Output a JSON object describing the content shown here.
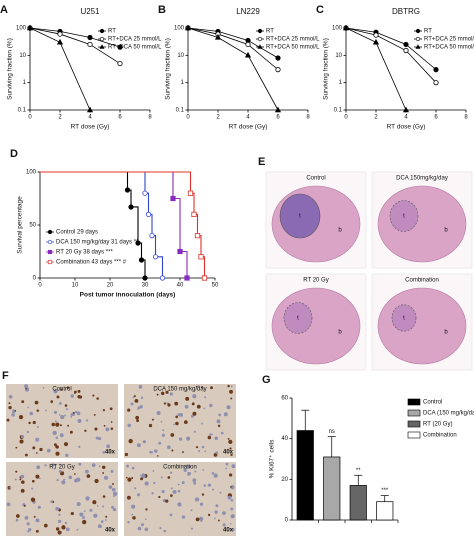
{
  "chart_data": [
    {
      "panel": "A",
      "type": "line",
      "title": "U251",
      "x_label": "RT dose (Gy)",
      "y_label": "Surviving fraction (%)",
      "log_y": true,
      "xlim": [
        0,
        8
      ],
      "xticks": [
        0,
        2,
        4,
        6,
        8
      ],
      "ylim": [
        0.1,
        100
      ],
      "yticks": [
        0.1,
        1,
        10,
        100
      ],
      "series": [
        {
          "name": "RT",
          "color": "#000000",
          "marker": "circle",
          "filled": true,
          "x": [
            0,
            2,
            4,
            6
          ],
          "values": [
            100,
            75,
            45,
            20
          ]
        },
        {
          "name": "RT+DCA 25 mmol/L",
          "color": "#000000",
          "marker": "circle",
          "filled": false,
          "x": [
            0,
            2,
            4,
            6
          ],
          "values": [
            100,
            60,
            25,
            5
          ]
        },
        {
          "name": "RT+DCA 50 mmol/L",
          "color": "#000000",
          "marker": "triangle",
          "filled": true,
          "x": [
            0,
            2,
            4
          ],
          "values": [
            100,
            30,
            0.1
          ]
        }
      ]
    },
    {
      "panel": "B",
      "type": "line",
      "title": "LN229",
      "x_label": "RT dose (Gy)",
      "y_label": "Surviving fraction (%)",
      "log_y": true,
      "xlim": [
        0,
        8
      ],
      "xticks": [
        0,
        2,
        4,
        6,
        8
      ],
      "ylim": [
        0.1,
        100
      ],
      "yticks": [
        0.1,
        1,
        10,
        100
      ],
      "series": [
        {
          "name": "RT",
          "color": "#000000",
          "marker": "circle",
          "filled": true,
          "x": [
            0,
            2,
            4,
            6
          ],
          "values": [
            100,
            75,
            35,
            8
          ]
        },
        {
          "name": "RT+DCA 25 mmol/L",
          "color": "#000000",
          "marker": "circle",
          "filled": false,
          "x": [
            0,
            2,
            4,
            6
          ],
          "values": [
            100,
            60,
            25,
            3
          ]
        },
        {
          "name": "RT+DCA 50 mmol/L",
          "color": "#000000",
          "marker": "triangle",
          "filled": true,
          "x": [
            0,
            2,
            4,
            6
          ],
          "values": [
            100,
            45,
            10,
            0.1
          ]
        }
      ]
    },
    {
      "panel": "C",
      "type": "line",
      "title": "DBTRG",
      "x_label": "RT dose (Gy)",
      "y_label": "Surviving fraction (%)",
      "log_y": true,
      "xlim": [
        0,
        8
      ],
      "xticks": [
        0,
        2,
        4,
        6,
        8
      ],
      "ylim": [
        0.1,
        100
      ],
      "yticks": [
        0.1,
        1,
        10,
        100
      ],
      "series": [
        {
          "name": "RT",
          "color": "#000000",
          "marker": "circle",
          "filled": true,
          "x": [
            0,
            2,
            4,
            6
          ],
          "values": [
            100,
            70,
            25,
            3
          ]
        },
        {
          "name": "RT+DCA 25 mmol/L",
          "color": "#000000",
          "marker": "circle",
          "filled": false,
          "x": [
            0,
            2,
            4,
            6
          ],
          "values": [
            100,
            55,
            15,
            1
          ]
        },
        {
          "name": "RT+DCA 50 mmol/L",
          "color": "#000000",
          "marker": "triangle",
          "filled": true,
          "x": [
            0,
            2,
            4
          ],
          "values": [
            100,
            30,
            0.1
          ]
        }
      ]
    },
    {
      "panel": "D",
      "type": "step",
      "x_label": "Post tumor innoculation (days)",
      "y_label": "Survival percentage",
      "xlim": [
        0,
        50
      ],
      "xticks": [
        0,
        10,
        20,
        30,
        40,
        50
      ],
      "ylim": [
        0,
        100
      ],
      "yticks": [
        0,
        50,
        100
      ],
      "series": [
        {
          "name": "Control 29 days",
          "color": "#000000",
          "marker": "circle",
          "filled": true,
          "x": [
            0,
            25,
            26,
            28,
            29,
            30
          ],
          "values": [
            100,
            83,
            67,
            33,
            17,
            0
          ]
        },
        {
          "name": "DCA 150 mg/kg/day 31 days **",
          "color": "#3344cc",
          "marker": "circle",
          "filled": false,
          "x": [
            0,
            30,
            31,
            32,
            33,
            35
          ],
          "values": [
            100,
            80,
            60,
            40,
            20,
            0
          ]
        },
        {
          "name": "RT 20 Gy 38 days ***",
          "color": "#8a2bbf",
          "marker": "square",
          "filled": true,
          "x": [
            0,
            38,
            40,
            42
          ],
          "values": [
            100,
            75,
            25,
            0
          ]
        },
        {
          "name": "Combination 43 days *** #",
          "color": "#e0302a",
          "marker": "square",
          "filled": false,
          "x": [
            0,
            43,
            44,
            45,
            46,
            47
          ],
          "values": [
            100,
            80,
            60,
            40,
            20,
            0
          ]
        }
      ]
    },
    {
      "panel": "G",
      "type": "bar",
      "y_label": "% Ki67⁺ cells",
      "ylim": [
        0,
        60
      ],
      "yticks": [
        0,
        20,
        40,
        60
      ],
      "series": [
        {
          "name": "Control",
          "color": "#000000",
          "values": [
            44
          ],
          "errors": [
            10
          ]
        },
        {
          "name": "DCA (150 mg/kg/day)",
          "color": "#a8a8a8",
          "values": [
            31
          ],
          "errors": [
            10
          ],
          "significance": "ns"
        },
        {
          "name": "RT (20 Gy)",
          "color": "#666666",
          "values": [
            17
          ],
          "errors": [
            5
          ],
          "significance": "**"
        },
        {
          "name": "Combination",
          "color": "#ffffff",
          "values": [
            9
          ],
          "errors": [
            3
          ],
          "significance": "***"
        }
      ]
    }
  ],
  "images": [
    {
      "panel": "E",
      "tiles": [
        {
          "label": "Control",
          "marks": [
            "t",
            "b"
          ]
        },
        {
          "label": "DCA 150mg/kg/day",
          "marks": [
            "t",
            "b"
          ]
        },
        {
          "label": "RT 20 Gy",
          "marks": [
            "t",
            "b"
          ]
        },
        {
          "label": "Combination",
          "marks": [
            "t",
            "b"
          ]
        }
      ]
    },
    {
      "panel": "F",
      "tiles": [
        {
          "label": "Control",
          "magnification": "40x"
        },
        {
          "label": "DCA 150 mg/kg/day",
          "magnification": "40x"
        },
        {
          "label": "RT 20 Gy",
          "magnification": "40x"
        },
        {
          "label": "Combination",
          "magnification": "40x"
        }
      ]
    }
  ]
}
